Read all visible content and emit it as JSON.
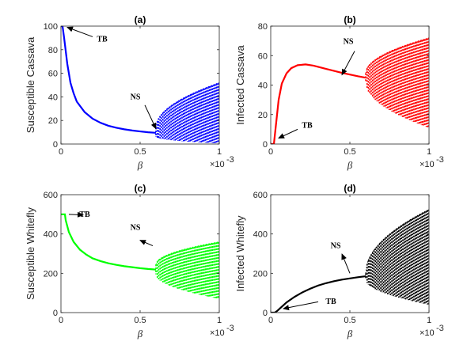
{
  "chart_data": [
    {
      "type": "line",
      "panel_label": "(a)",
      "ylabel": "Susceptible Cassava",
      "xlabel": "β",
      "xlim": [
        0,
        1
      ],
      "ylim": [
        0,
        100
      ],
      "xticks": [
        0,
        0.5,
        1
      ],
      "xtick_labels": [
        "0",
        "0.5",
        "1"
      ],
      "yticks": [
        0,
        20,
        40,
        60,
        80,
        100
      ],
      "ytick_labels": [
        "0",
        "20",
        "40",
        "60",
        "80",
        "100"
      ],
      "x_exponent": "×10",
      "x_exponent_power": "-3",
      "color": "#0000ff",
      "curve": [
        [
          0,
          100
        ],
        [
          0.01,
          100
        ],
        [
          0.02,
          90
        ],
        [
          0.04,
          68
        ],
        [
          0.06,
          52
        ],
        [
          0.08,
          43
        ],
        [
          0.1,
          36
        ],
        [
          0.15,
          27
        ],
        [
          0.2,
          21.5
        ],
        [
          0.25,
          18
        ],
        [
          0.3,
          15.5
        ],
        [
          0.35,
          13.8
        ],
        [
          0.4,
          12.5
        ],
        [
          0.45,
          11.5
        ],
        [
          0.5,
          10.7
        ],
        [
          0.55,
          10
        ],
        [
          0.6,
          9.5
        ]
      ],
      "oscillation": {
        "start": 0.6,
        "end": 1.0,
        "min_start": 6,
        "min_end": 0.5,
        "max_start": 14,
        "max_end": 52
      },
      "annotations": [
        {
          "text": "TB",
          "x": 0.26,
          "y": 87,
          "arrow_from": [
            0.2,
            91
          ],
          "arrow_to": [
            0.04,
            99
          ]
        },
        {
          "text": "NS",
          "x": 0.47,
          "y": 38,
          "arrow_from": [
            0.53,
            33
          ],
          "arrow_to": [
            0.6,
            13
          ]
        }
      ]
    },
    {
      "type": "line",
      "panel_label": "(b)",
      "ylabel": "Infected Cassava",
      "xlabel": "β",
      "xlim": [
        0,
        1
      ],
      "ylim": [
        0,
        80
      ],
      "xticks": [
        0,
        0.5,
        1
      ],
      "xtick_labels": [
        "0",
        "0.5",
        "1"
      ],
      "yticks": [
        0,
        20,
        40,
        60,
        80
      ],
      "ytick_labels": [
        "0",
        "20",
        "40",
        "60",
        "80"
      ],
      "x_exponent": "×10",
      "x_exponent_power": "-3",
      "color": "#ff0000",
      "curve": [
        [
          0,
          0
        ],
        [
          0.02,
          0
        ],
        [
          0.03,
          10
        ],
        [
          0.05,
          30
        ],
        [
          0.07,
          41
        ],
        [
          0.1,
          48
        ],
        [
          0.13,
          51.5
        ],
        [
          0.17,
          53.5
        ],
        [
          0.22,
          54
        ],
        [
          0.27,
          53.2
        ],
        [
          0.35,
          51
        ],
        [
          0.45,
          48.3
        ],
        [
          0.55,
          46
        ],
        [
          0.6,
          45
        ]
      ],
      "oscillation": {
        "start": 0.6,
        "end": 1.0,
        "min_start": 42,
        "min_end": 11,
        "max_start": 48,
        "max_end": 72
      },
      "annotations": [
        {
          "text": "TB",
          "x": 0.23,
          "y": 11,
          "arrow_from": [
            0.17,
            10
          ],
          "arrow_to": [
            0.05,
            4
          ]
        },
        {
          "text": "NS",
          "x": 0.49,
          "y": 68,
          "arrow_from": [
            0.53,
            63
          ],
          "arrow_to": [
            0.45,
            47
          ]
        }
      ]
    },
    {
      "type": "line",
      "panel_label": "(c)",
      "ylabel": "Susceptible Whitefly",
      "xlabel": "β",
      "xlim": [
        0,
        1
      ],
      "ylim": [
        0,
        600
      ],
      "xticks": [
        0,
        0.5,
        1
      ],
      "xtick_labels": [
        "0",
        "0.5",
        "1"
      ],
      "yticks": [
        0,
        200,
        400,
        600
      ],
      "ytick_labels": [
        "0",
        "200",
        "400",
        "600"
      ],
      "x_exponent": "×10",
      "x_exponent_power": "-3",
      "color": "#00ff00",
      "curve": [
        [
          0,
          500
        ],
        [
          0.025,
          500
        ],
        [
          0.03,
          470
        ],
        [
          0.05,
          410
        ],
        [
          0.08,
          360
        ],
        [
          0.12,
          320
        ],
        [
          0.16,
          295
        ],
        [
          0.2,
          276
        ],
        [
          0.25,
          262
        ],
        [
          0.3,
          251
        ],
        [
          0.35,
          243
        ],
        [
          0.4,
          236
        ],
        [
          0.45,
          231
        ],
        [
          0.5,
          226
        ],
        [
          0.55,
          222
        ],
        [
          0.6,
          219
        ]
      ],
      "oscillation": {
        "start": 0.6,
        "end": 1.0,
        "min_start": 195,
        "min_end": 70,
        "max_start": 245,
        "max_end": 360
      },
      "annotations": [
        {
          "text": "TB",
          "x": 0.15,
          "y": 487,
          "arrow_from": [
            0.05,
            500
          ],
          "arrow_to": [
            0.14,
            497
          ]
        },
        {
          "text": "NS",
          "x": 0.47,
          "y": 420,
          "arrow_from": [
            0.58,
            340
          ],
          "arrow_to": [
            0.5,
            368
          ]
        }
      ]
    },
    {
      "type": "line",
      "panel_label": "(d)",
      "ylabel": "Infected Whitefly",
      "xlabel": "β",
      "xlim": [
        0,
        1
      ],
      "ylim": [
        0,
        600
      ],
      "xticks": [
        0,
        0.5,
        1
      ],
      "xtick_labels": [
        "0",
        "0.5",
        "1"
      ],
      "yticks": [
        0,
        200,
        400,
        600
      ],
      "ytick_labels": [
        "0",
        "200",
        "400",
        "600"
      ],
      "x_exponent": "×10",
      "x_exponent_power": "-3",
      "color": "#000000",
      "curve": [
        [
          0,
          0
        ],
        [
          0.025,
          0
        ],
        [
          0.04,
          8
        ],
        [
          0.07,
          30
        ],
        [
          0.1,
          52
        ],
        [
          0.15,
          80
        ],
        [
          0.2,
          103
        ],
        [
          0.25,
          122
        ],
        [
          0.3,
          138
        ],
        [
          0.35,
          150
        ],
        [
          0.4,
          160
        ],
        [
          0.45,
          168
        ],
        [
          0.5,
          174
        ],
        [
          0.55,
          180
        ],
        [
          0.6,
          185
        ]
      ],
      "oscillation": {
        "start": 0.6,
        "end": 1.0,
        "min_start": 170,
        "min_end": 40,
        "max_start": 200,
        "max_end": 525
      },
      "annotations": [
        {
          "text": "TB",
          "x": 0.38,
          "y": 45,
          "arrow_from": [
            0.3,
            55
          ],
          "arrow_to": [
            0.08,
            20
          ]
        },
        {
          "text": "NS",
          "x": 0.41,
          "y": 328,
          "arrow_from": [
            0.5,
            200
          ],
          "arrow_to": [
            0.45,
            298
          ]
        }
      ]
    }
  ]
}
